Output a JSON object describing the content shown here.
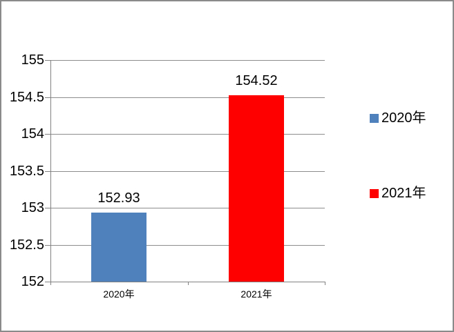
{
  "chart_data": {
    "type": "bar",
    "title": "",
    "xlabel": "",
    "ylabel": "",
    "categories": [
      "2020年",
      "2021年"
    ],
    "values": [
      152.93,
      154.52
    ],
    "bar_colors": [
      "#4F81BD",
      "#FF0000"
    ],
    "data_labels": [
      "152.93",
      "154.52"
    ],
    "ylim": [
      152,
      155
    ],
    "ytick_step": 0.5,
    "yticks": [
      152,
      152.5,
      153,
      153.5,
      154,
      154.5,
      155
    ],
    "ytick_labels": [
      "152",
      "152.5",
      "153",
      "153.5",
      "154",
      "154.5",
      "155"
    ],
    "grid": true,
    "legend": {
      "position": "right",
      "entries": [
        {
          "label": "2020年",
          "color": "#4F81BD"
        },
        {
          "label": "2021年",
          "color": "#FF0000"
        }
      ]
    }
  },
  "style": {
    "background": "#FFFFFF",
    "frame_border_color": "#8A8A8A",
    "gridline_color": "#8C8C8C",
    "axis_color": "#808080",
    "text_color": "#000000"
  }
}
